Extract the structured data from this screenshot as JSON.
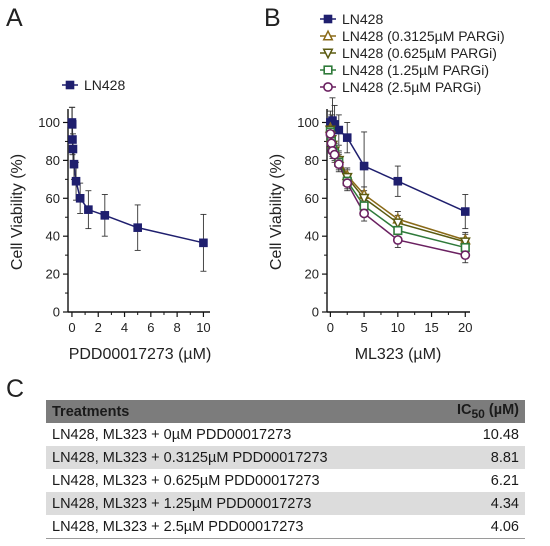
{
  "chart_data": [
    {
      "panel": "A",
      "type": "line",
      "xlabel": "PDD00017273 (µM)",
      "ylabel": "Cell Viability (%)",
      "xlim": [
        -0.3,
        10.5
      ],
      "ylim": [
        0,
        105
      ],
      "xticks": [
        "0",
        "2",
        "4",
        "6",
        "8",
        "10"
      ],
      "yticks": [
        "0",
        "20",
        "40",
        "60",
        "80",
        "100"
      ],
      "legend_position": "top-left",
      "series": [
        {
          "name": "LN428",
          "color": "#1f1f6e",
          "marker": "square-filled",
          "x": [
            0,
            0.0195,
            0.039,
            0.078,
            0.156,
            0.3125,
            0.625,
            1.25,
            2.5,
            5,
            10
          ],
          "y": [
            100,
            99,
            91,
            86,
            78,
            69,
            60,
            54,
            51,
            44.5,
            36.5
          ],
          "err": [
            8,
            9,
            8,
            8,
            8,
            10,
            8,
            10,
            11,
            12,
            15
          ]
        }
      ]
    },
    {
      "panel": "B",
      "type": "line",
      "xlabel": "ML323 (µM)",
      "ylabel": "Cell Viability (%)",
      "xlim": [
        -0.5,
        20.7
      ],
      "ylim": [
        0,
        105
      ],
      "xticks": [
        "0",
        "5",
        "10",
        "15",
        "20"
      ],
      "yticks": [
        "0",
        "20",
        "40",
        "60",
        "80",
        "100"
      ],
      "legend_position": "top-left",
      "series": [
        {
          "name": "LN428",
          "color": "#1f1f6e",
          "marker": "square-filled",
          "x": [
            0,
            0.156,
            0.3125,
            0.625,
            1.25,
            2.5,
            5,
            10,
            20
          ],
          "y": [
            100,
            98,
            101,
            99,
            96,
            92,
            77,
            69,
            53
          ],
          "err": [
            6,
            6,
            12,
            10,
            8,
            8,
            18,
            8,
            9
          ]
        },
        {
          "name": "LN428 (0.3125µM PARGi)",
          "color": "#8a6a18",
          "marker": "triangle-up-open",
          "x": [
            0,
            0.156,
            0.3125,
            0.625,
            1.25,
            2.5,
            5,
            10,
            20
          ],
          "y": [
            97,
            92,
            89,
            86,
            81,
            72,
            62,
            49,
            38
          ],
          "err": [
            4,
            4,
            4,
            4,
            4,
            4,
            4,
            4,
            4
          ]
        },
        {
          "name": "LN428 (0.625µM PARGi)",
          "color": "#5a5a10",
          "marker": "triangle-down-open",
          "x": [
            0,
            0.156,
            0.3125,
            0.625,
            1.25,
            2.5,
            5,
            10,
            20
          ],
          "y": [
            96,
            91,
            88,
            85,
            80,
            71,
            60,
            47,
            37
          ],
          "err": [
            4,
            4,
            4,
            4,
            4,
            4,
            4,
            4,
            4
          ]
        },
        {
          "name": "LN428 (1.25µM PARGi)",
          "color": "#2f7a3a",
          "marker": "square-open",
          "x": [
            0,
            0.156,
            0.3125,
            0.625,
            1.25,
            2.5,
            5,
            10,
            20
          ],
          "y": [
            95,
            90,
            86,
            84,
            79,
            69,
            56,
            43,
            34
          ],
          "err": [
            4,
            4,
            4,
            4,
            4,
            4,
            4,
            4,
            4
          ]
        },
        {
          "name": "LN428 (2.5µM PARGi)",
          "color": "#6a2060",
          "marker": "circle-open",
          "x": [
            0,
            0.156,
            0.3125,
            0.625,
            1.25,
            2.5,
            5,
            10,
            20
          ],
          "y": [
            94,
            89,
            85,
            83,
            78,
            68,
            52,
            38,
            30
          ],
          "err": [
            4,
            4,
            4,
            4,
            4,
            4,
            4,
            4,
            4
          ]
        }
      ]
    },
    {
      "panel": "C",
      "type": "table",
      "columns": [
        "Treatments",
        "IC50 (µM)"
      ],
      "rows": [
        [
          "LN428, ML323 + 0µM PDD00017273",
          "10.48"
        ],
        [
          "LN428, ML323 + 0.3125µM PDD00017273",
          "8.81"
        ],
        [
          "LN428, ML323 + 0.625µM PDD00017273",
          "6.21"
        ],
        [
          "LN428, ML323 + 1.25µM PDD00017273",
          "4.34"
        ],
        [
          "LN428, ML323 + 2.5µM PDD00017273",
          "4.06"
        ]
      ]
    }
  ],
  "labels": {
    "panel_a": "A",
    "panel_b": "B",
    "panel_c": "C",
    "axis_x_a": "PDD00017273 (µM)",
    "axis_x_b": "ML323 (µM)",
    "axis_y": "Cell Viability (%)",
    "table_header_treatment": "Treatments",
    "table_header_ic_base": "IC",
    "table_header_ic_sub": "50",
    "table_header_ic_unit": " (µM)"
  },
  "table_rows": [
    {
      "treatment": "LN428, ML323 + 0µM PDD00017273",
      "ic50": "10.48"
    },
    {
      "treatment": "LN428, ML323 + 0.3125µM PDD00017273",
      "ic50": "8.81"
    },
    {
      "treatment": "LN428, ML323 + 0.625µM PDD00017273",
      "ic50": "6.21"
    },
    {
      "treatment": "LN428, ML323 + 1.25µM PDD00017273",
      "ic50": "4.34"
    },
    {
      "treatment": "LN428, ML323 + 2.5µM PDD00017273",
      "ic50": "4.06"
    }
  ]
}
